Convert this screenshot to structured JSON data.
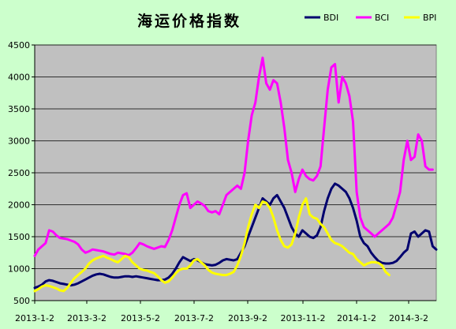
{
  "chart_data": {
    "type": "line",
    "title": "海运价格指数",
    "xlabel": "",
    "ylabel": "",
    "ylim": [
      500,
      4500
    ],
    "y_ticks": [
      500,
      1000,
      1500,
      2000,
      2500,
      3000,
      3500,
      4000,
      4500
    ],
    "x_tick_labels": [
      "2013-1-2",
      "2013-3-2",
      "2013-5-2",
      "2013-7-2",
      "2013-9-2",
      "2013-11-2",
      "2014-1-2",
      "2014-3-2"
    ],
    "grid": "horizontal",
    "legend_position": "top-right",
    "series": [
      {
        "name": "BDI",
        "color": "#00006e",
        "values": [
          [
            0,
            700
          ],
          [
            3,
            720
          ],
          [
            6,
            750
          ],
          [
            9,
            800
          ],
          [
            12,
            820
          ],
          [
            15,
            810
          ],
          [
            18,
            790
          ],
          [
            21,
            770
          ],
          [
            24,
            760
          ],
          [
            27,
            750
          ],
          [
            30,
            740
          ],
          [
            33,
            750
          ],
          [
            36,
            770
          ],
          [
            39,
            800
          ],
          [
            42,
            830
          ],
          [
            45,
            860
          ],
          [
            48,
            890
          ],
          [
            51,
            910
          ],
          [
            54,
            920
          ],
          [
            57,
            910
          ],
          [
            60,
            890
          ],
          [
            63,
            870
          ],
          [
            66,
            860
          ],
          [
            69,
            860
          ],
          [
            72,
            870
          ],
          [
            75,
            880
          ],
          [
            78,
            880
          ],
          [
            81,
            870
          ],
          [
            84,
            880
          ],
          [
            87,
            870
          ],
          [
            90,
            860
          ],
          [
            93,
            850
          ],
          [
            96,
            840
          ],
          [
            99,
            830
          ],
          [
            102,
            820
          ],
          [
            105,
            820
          ],
          [
            108,
            830
          ],
          [
            111,
            860
          ],
          [
            114,
            920
          ],
          [
            117,
            1000
          ],
          [
            120,
            1100
          ],
          [
            123,
            1180
          ],
          [
            126,
            1150
          ],
          [
            129,
            1120
          ],
          [
            132,
            1150
          ],
          [
            135,
            1130
          ],
          [
            138,
            1100
          ],
          [
            141,
            1070
          ],
          [
            144,
            1060
          ],
          [
            147,
            1050
          ],
          [
            150,
            1060
          ],
          [
            153,
            1090
          ],
          [
            156,
            1130
          ],
          [
            159,
            1150
          ],
          [
            162,
            1140
          ],
          [
            165,
            1130
          ],
          [
            168,
            1150
          ],
          [
            171,
            1250
          ],
          [
            174,
            1350
          ],
          [
            177,
            1500
          ],
          [
            180,
            1650
          ],
          [
            183,
            1800
          ],
          [
            186,
            1950
          ],
          [
            189,
            2100
          ],
          [
            192,
            2050
          ],
          [
            195,
            2000
          ],
          [
            198,
            2100
          ],
          [
            201,
            2150
          ],
          [
            204,
            2050
          ],
          [
            207,
            1950
          ],
          [
            210,
            1800
          ],
          [
            213,
            1650
          ],
          [
            216,
            1550
          ],
          [
            219,
            1500
          ],
          [
            222,
            1600
          ],
          [
            225,
            1550
          ],
          [
            228,
            1500
          ],
          [
            231,
            1480
          ],
          [
            234,
            1520
          ],
          [
            237,
            1650
          ],
          [
            240,
            1900
          ],
          [
            243,
            2100
          ],
          [
            246,
            2250
          ],
          [
            249,
            2330
          ],
          [
            252,
            2300
          ],
          [
            255,
            2250
          ],
          [
            258,
            2200
          ],
          [
            261,
            2100
          ],
          [
            264,
            1950
          ],
          [
            267,
            1750
          ],
          [
            270,
            1500
          ],
          [
            273,
            1400
          ],
          [
            276,
            1350
          ],
          [
            279,
            1250
          ],
          [
            282,
            1180
          ],
          [
            285,
            1120
          ],
          [
            288,
            1090
          ],
          [
            291,
            1080
          ],
          [
            294,
            1080
          ],
          [
            297,
            1090
          ],
          [
            300,
            1120
          ],
          [
            303,
            1180
          ],
          [
            306,
            1250
          ],
          [
            309,
            1300
          ],
          [
            312,
            1550
          ],
          [
            315,
            1580
          ],
          [
            318,
            1500
          ],
          [
            321,
            1550
          ],
          [
            324,
            1600
          ],
          [
            327,
            1580
          ],
          [
            330,
            1350
          ],
          [
            333,
            1300
          ]
        ]
      },
      {
        "name": "BCI",
        "color": "#ff00ff",
        "values": [
          [
            0,
            1200
          ],
          [
            3,
            1300
          ],
          [
            6,
            1350
          ],
          [
            9,
            1400
          ],
          [
            12,
            1600
          ],
          [
            15,
            1580
          ],
          [
            18,
            1520
          ],
          [
            21,
            1480
          ],
          [
            24,
            1470
          ],
          [
            27,
            1460
          ],
          [
            30,
            1440
          ],
          [
            33,
            1420
          ],
          [
            36,
            1380
          ],
          [
            39,
            1300
          ],
          [
            42,
            1250
          ],
          [
            45,
            1270
          ],
          [
            48,
            1300
          ],
          [
            51,
            1290
          ],
          [
            54,
            1280
          ],
          [
            57,
            1270
          ],
          [
            60,
            1250
          ],
          [
            63,
            1230
          ],
          [
            66,
            1220
          ],
          [
            69,
            1250
          ],
          [
            72,
            1240
          ],
          [
            75,
            1230
          ],
          [
            78,
            1210
          ],
          [
            81,
            1250
          ],
          [
            84,
            1320
          ],
          [
            87,
            1400
          ],
          [
            90,
            1380
          ],
          [
            93,
            1350
          ],
          [
            96,
            1330
          ],
          [
            99,
            1310
          ],
          [
            102,
            1330
          ],
          [
            105,
            1350
          ],
          [
            108,
            1340
          ],
          [
            111,
            1450
          ],
          [
            114,
            1600
          ],
          [
            117,
            1800
          ],
          [
            120,
            2000
          ],
          [
            123,
            2150
          ],
          [
            126,
            2180
          ],
          [
            129,
            1950
          ],
          [
            132,
            2000
          ],
          [
            135,
            2050
          ],
          [
            138,
            2020
          ],
          [
            141,
            1980
          ],
          [
            144,
            1900
          ],
          [
            147,
            1880
          ],
          [
            150,
            1900
          ],
          [
            153,
            1850
          ],
          [
            156,
            2000
          ],
          [
            159,
            2150
          ],
          [
            162,
            2200
          ],
          [
            165,
            2250
          ],
          [
            168,
            2300
          ],
          [
            171,
            2250
          ],
          [
            174,
            2500
          ],
          [
            177,
            3000
          ],
          [
            180,
            3400
          ],
          [
            183,
            3600
          ],
          [
            186,
            4000
          ],
          [
            189,
            4300
          ],
          [
            192,
            3900
          ],
          [
            195,
            3800
          ],
          [
            198,
            3950
          ],
          [
            201,
            3900
          ],
          [
            204,
            3600
          ],
          [
            207,
            3200
          ],
          [
            210,
            2700
          ],
          [
            213,
            2500
          ],
          [
            216,
            2200
          ],
          [
            219,
            2400
          ],
          [
            222,
            2550
          ],
          [
            225,
            2450
          ],
          [
            228,
            2400
          ],
          [
            231,
            2380
          ],
          [
            234,
            2450
          ],
          [
            237,
            2600
          ],
          [
            240,
            3200
          ],
          [
            243,
            3800
          ],
          [
            246,
            4150
          ],
          [
            249,
            4200
          ],
          [
            252,
            3600
          ],
          [
            255,
            4000
          ],
          [
            258,
            3900
          ],
          [
            261,
            3700
          ],
          [
            264,
            3300
          ],
          [
            267,
            2200
          ],
          [
            270,
            1800
          ],
          [
            273,
            1650
          ],
          [
            276,
            1600
          ],
          [
            279,
            1550
          ],
          [
            282,
            1500
          ],
          [
            285,
            1550
          ],
          [
            288,
            1600
          ],
          [
            291,
            1650
          ],
          [
            294,
            1700
          ],
          [
            297,
            1800
          ],
          [
            300,
            2000
          ],
          [
            303,
            2200
          ],
          [
            306,
            2700
          ],
          [
            309,
            3000
          ],
          [
            312,
            2700
          ],
          [
            315,
            2750
          ],
          [
            318,
            3100
          ],
          [
            321,
            3000
          ],
          [
            324,
            2600
          ],
          [
            327,
            2550
          ],
          [
            330,
            2550
          ]
        ]
      },
      {
        "name": "BPI",
        "color": "#ffff00",
        "values": [
          [
            0,
            650
          ],
          [
            3,
            680
          ],
          [
            6,
            720
          ],
          [
            9,
            740
          ],
          [
            12,
            730
          ],
          [
            15,
            710
          ],
          [
            18,
            690
          ],
          [
            21,
            660
          ],
          [
            24,
            650
          ],
          [
            27,
            700
          ],
          [
            30,
            780
          ],
          [
            33,
            850
          ],
          [
            36,
            900
          ],
          [
            39,
            950
          ],
          [
            42,
            1000
          ],
          [
            45,
            1080
          ],
          [
            48,
            1130
          ],
          [
            51,
            1160
          ],
          [
            54,
            1180
          ],
          [
            57,
            1200
          ],
          [
            60,
            1170
          ],
          [
            63,
            1150
          ],
          [
            66,
            1120
          ],
          [
            69,
            1100
          ],
          [
            72,
            1150
          ],
          [
            75,
            1200
          ],
          [
            78,
            1180
          ],
          [
            81,
            1100
          ],
          [
            84,
            1050
          ],
          [
            87,
            1000
          ],
          [
            90,
            980
          ],
          [
            93,
            970
          ],
          [
            96,
            950
          ],
          [
            99,
            930
          ],
          [
            102,
            880
          ],
          [
            105,
            820
          ],
          [
            108,
            780
          ],
          [
            111,
            800
          ],
          [
            114,
            860
          ],
          [
            117,
            930
          ],
          [
            120,
            980
          ],
          [
            123,
            1000
          ],
          [
            126,
            1000
          ],
          [
            129,
            1050
          ],
          [
            132,
            1130
          ],
          [
            135,
            1150
          ],
          [
            138,
            1100
          ],
          [
            141,
            1050
          ],
          [
            144,
            980
          ],
          [
            147,
            940
          ],
          [
            150,
            920
          ],
          [
            153,
            910
          ],
          [
            156,
            900
          ],
          [
            159,
            900
          ],
          [
            162,
            920
          ],
          [
            165,
            950
          ],
          [
            168,
            1050
          ],
          [
            171,
            1200
          ],
          [
            174,
            1400
          ],
          [
            177,
            1650
          ],
          [
            180,
            1850
          ],
          [
            183,
            2000
          ],
          [
            186,
            1950
          ],
          [
            189,
            2050
          ],
          [
            192,
            2030
          ],
          [
            195,
            1950
          ],
          [
            198,
            1800
          ],
          [
            201,
            1600
          ],
          [
            204,
            1450
          ],
          [
            207,
            1350
          ],
          [
            210,
            1330
          ],
          [
            213,
            1380
          ],
          [
            216,
            1550
          ],
          [
            219,
            1800
          ],
          [
            222,
            2000
          ],
          [
            225,
            2100
          ],
          [
            228,
            1850
          ],
          [
            231,
            1800
          ],
          [
            234,
            1780
          ],
          [
            237,
            1700
          ],
          [
            240,
            1650
          ],
          [
            243,
            1550
          ],
          [
            246,
            1450
          ],
          [
            249,
            1400
          ],
          [
            252,
            1380
          ],
          [
            255,
            1350
          ],
          [
            258,
            1300
          ],
          [
            261,
            1250
          ],
          [
            264,
            1230
          ],
          [
            267,
            1150
          ],
          [
            270,
            1100
          ],
          [
            273,
            1050
          ],
          [
            276,
            1080
          ],
          [
            279,
            1100
          ],
          [
            282,
            1100
          ],
          [
            285,
            1090
          ],
          [
            288,
            1050
          ],
          [
            291,
            950
          ],
          [
            294,
            900
          ]
        ]
      }
    ]
  }
}
